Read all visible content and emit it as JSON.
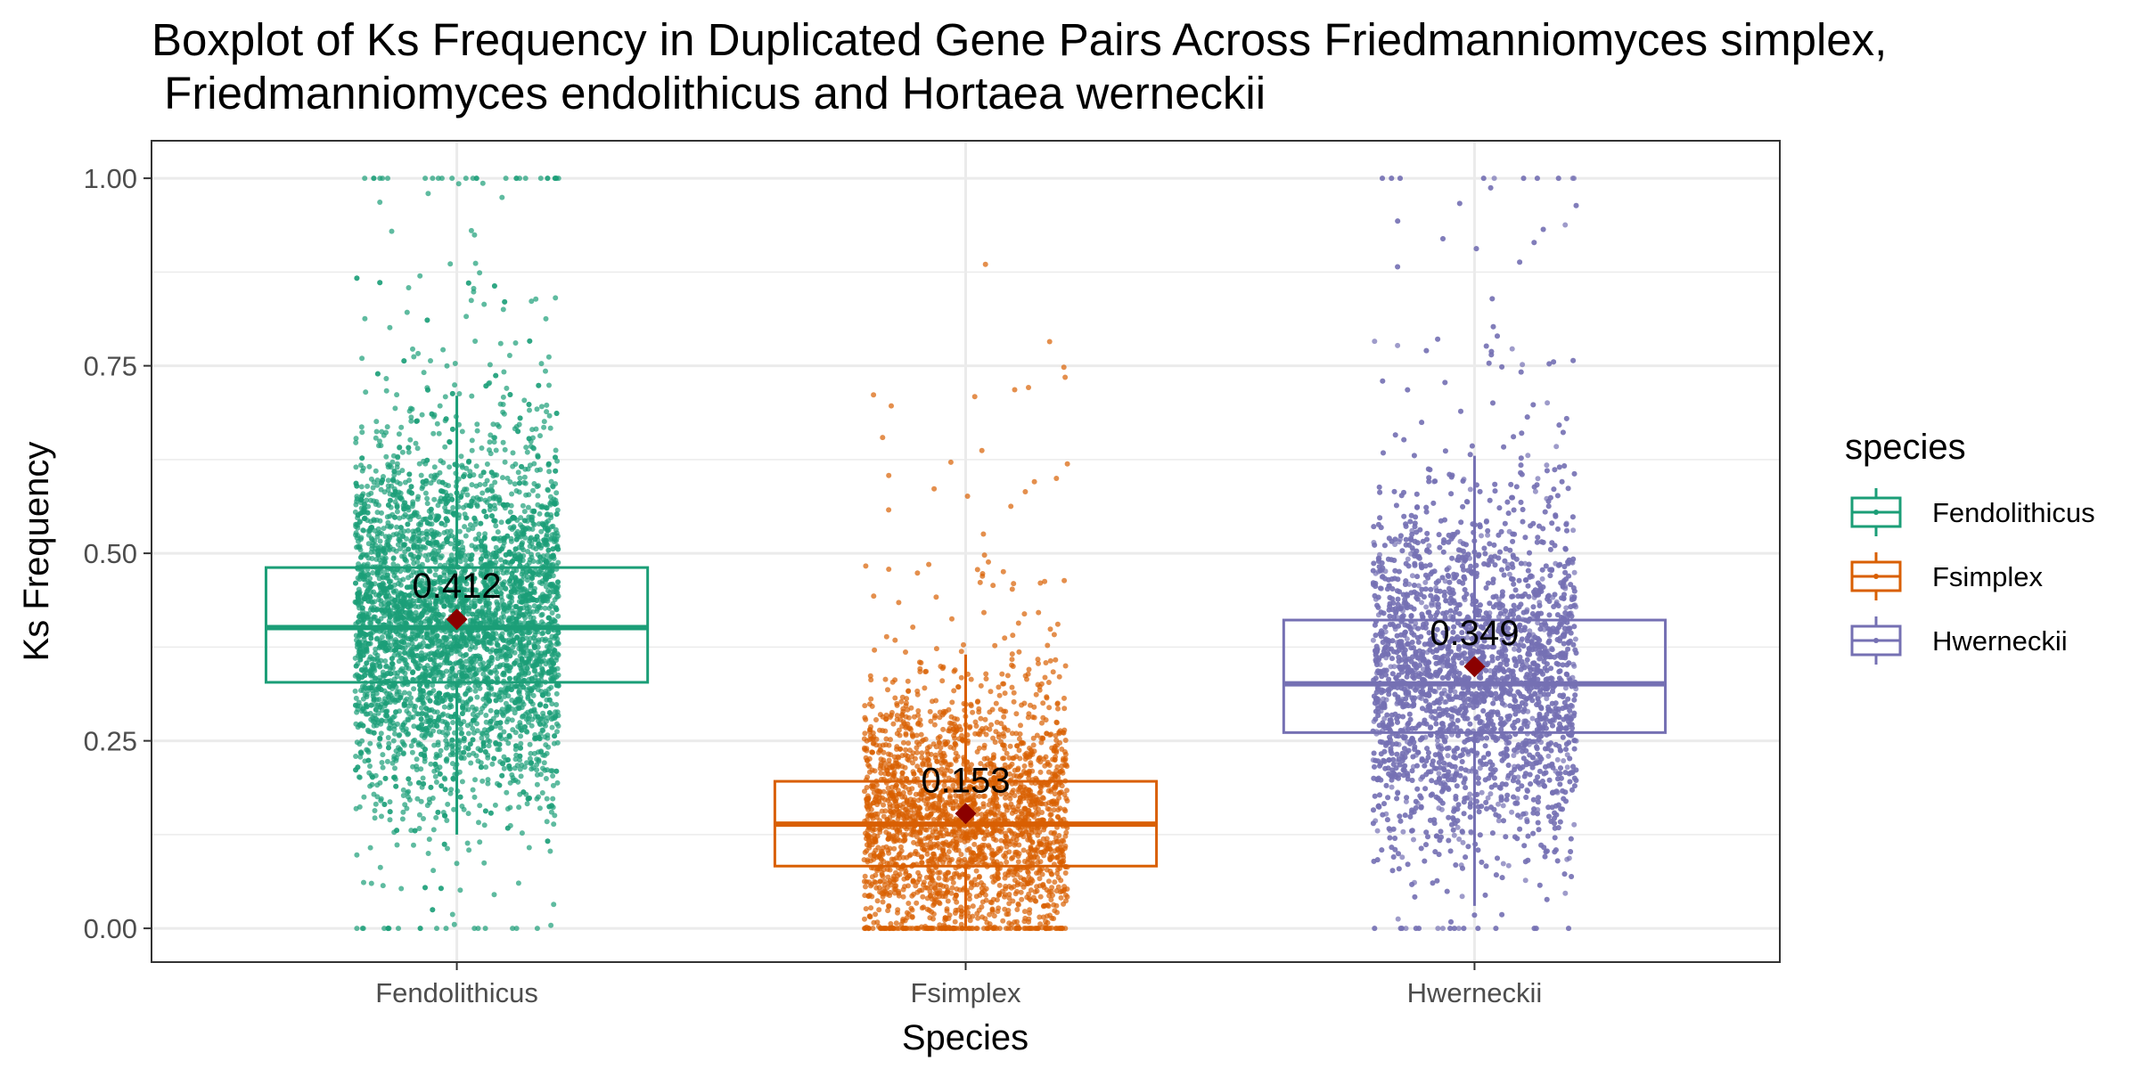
{
  "chart_data": {
    "type": "boxplot",
    "title_lines": [
      "Boxplot of Ks Frequency in Duplicated Gene Pairs Across Friedmanniomyces simplex,",
      " Friedmanniomyces endolithicus and Hortaea werneckii"
    ],
    "xlabel": "Species",
    "ylabel": "Ks Frequency",
    "ylim": [
      -0.045,
      1.05
    ],
    "yticks": [
      0,
      0.25,
      0.5,
      0.75,
      1.0
    ],
    "ytick_labels": [
      "0.00",
      "0.25",
      "0.50",
      "0.75",
      "1.00"
    ],
    "categories": [
      "Fendolithicus",
      "Fsimplex",
      "Hwerneckii"
    ],
    "grid": true,
    "legend": {
      "title": "species",
      "placement": "right",
      "entries": [
        "Fendolithicus",
        "Fsimplex",
        "Hwerneckii"
      ]
    },
    "colors": {
      "Fendolithicus": "#1b9e77",
      "Fsimplex": "#d95f02",
      "Hwerneckii": "#7570b3",
      "mean_marker": "#8b0000"
    },
    "series": [
      {
        "name": "Fendolithicus",
        "q1": 0.328,
        "median": 0.401,
        "q3": 0.481,
        "whisker_low": 0.125,
        "whisker_high": 0.71,
        "mean": 0.412,
        "mean_label": "0.412",
        "point_count": 4500
      },
      {
        "name": "Fsimplex",
        "q1": 0.083,
        "median": 0.139,
        "q3": 0.196,
        "whisker_low": 0.0,
        "whisker_high": 0.365,
        "mean": 0.153,
        "mean_label": "0.153",
        "point_count": 2500
      },
      {
        "name": "Hwerneckii",
        "q1": 0.261,
        "median": 0.326,
        "q3": 0.411,
        "whisker_low": 0.03,
        "whisker_high": 0.63,
        "mean": 0.349,
        "mean_label": "0.349",
        "point_count": 4500
      }
    ]
  }
}
